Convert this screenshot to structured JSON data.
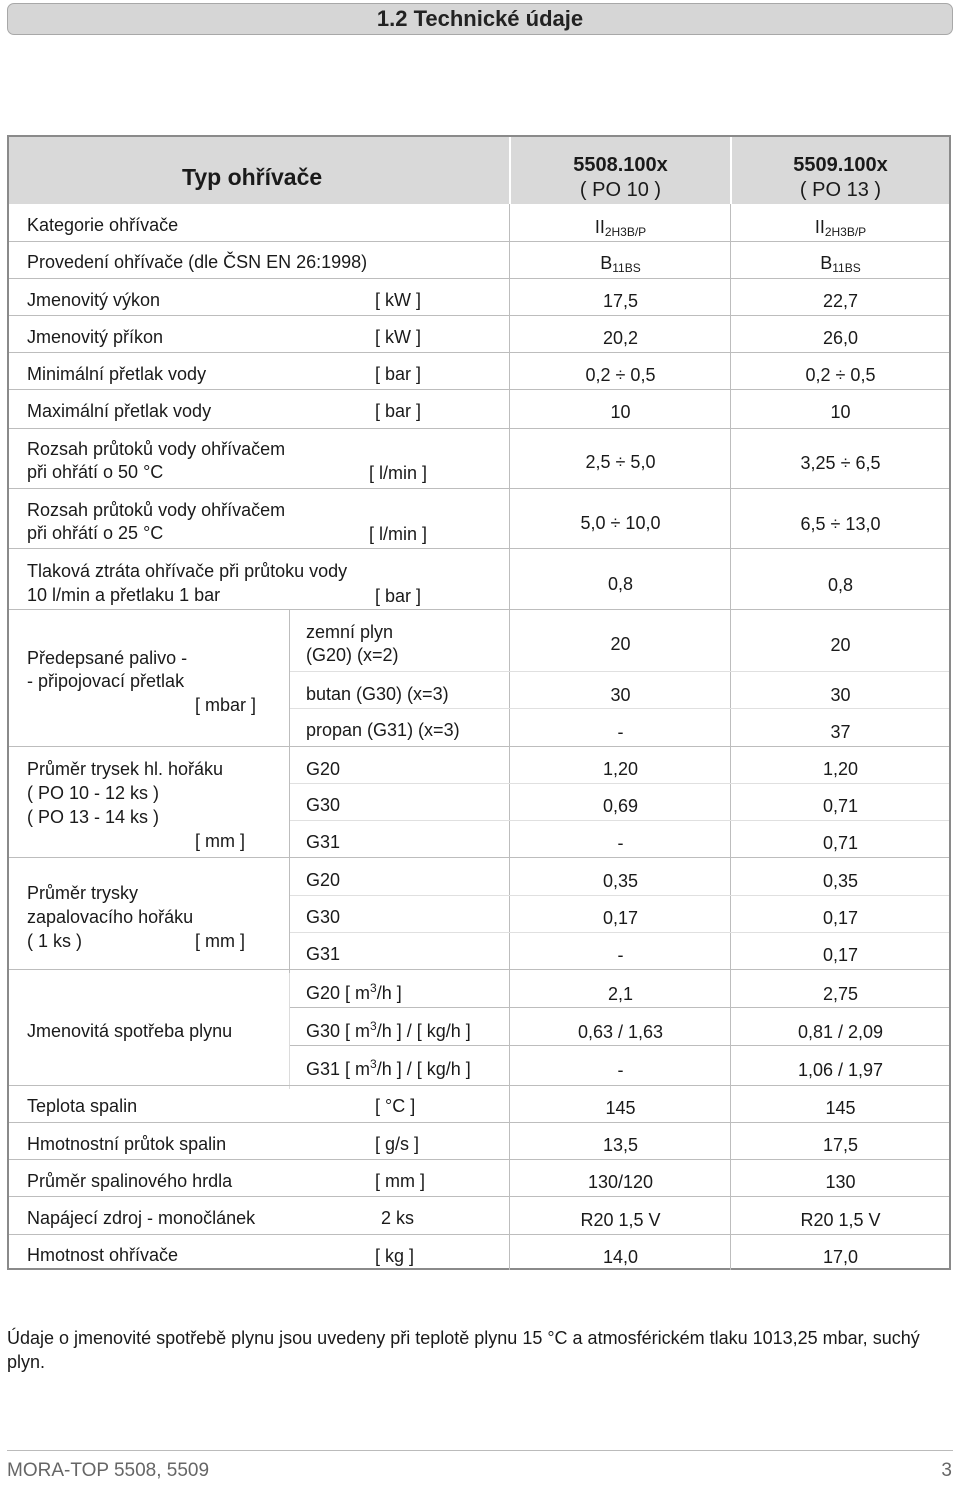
{
  "section_title": "1.2 Technické údaje",
  "header": {
    "type_label": "Typ ohřívače",
    "col1_model": "5508.100x",
    "col1_variant": "( PO 10 )",
    "col2_model": "5509.100x",
    "col2_variant": "( PO 13 )"
  },
  "rows": {
    "kategorie": {
      "label": "Kategorie ohřívače",
      "v1_main": "II",
      "v1_sub": "2H3B/P",
      "v2_main": "II",
      "v2_sub": "2H3B/P"
    },
    "provedeni": {
      "label": "Provedení ohřívače (dle ČSN EN 26:1998)",
      "v1_main": "B",
      "v1_sub": "11BS",
      "v2_main": "B",
      "v2_sub": "11BS"
    },
    "vykon": {
      "label": "Jmenovitý výkon",
      "unit": "[ kW ]",
      "v1": "17,5",
      "v2": "22,7"
    },
    "prikon": {
      "label": "Jmenovitý příkon",
      "unit": "[ kW ]",
      "v1": "20,2",
      "v2": "26,0"
    },
    "min_pretlak": {
      "label": "Minimální přetlak vody",
      "unit": "[ bar ]",
      "v1": "0,2 ÷ 0,5",
      "v2": "0,2 ÷ 0,5"
    },
    "max_pretlak": {
      "label": "Maximální přetlak vody",
      "unit": "[ bar ]",
      "v1": "10",
      "v2": "10"
    },
    "rozsah50": {
      "label1": "Rozsah průtoků vody ohřívačem",
      "label2": "při ohřátí o 50 °C",
      "unit": "[ l/min ]",
      "v1": "2,5 ÷ 5,0",
      "v2": "3,25 ÷ 6,5"
    },
    "rozsah25": {
      "label1": "Rozsah průtoků vody ohřívačem",
      "label2": "při ohřátí o 25 °C",
      "unit": "[ l/min ]",
      "v1": "5,0 ÷ 10,0",
      "v2": "6,5 ÷ 13,0"
    },
    "ztrata": {
      "label1": "Tlaková ztráta ohřívače při průtoku vody",
      "label2": "10 l/min a přetlaku 1 bar",
      "unit": "[ bar ]",
      "v1": "0,8",
      "v2": "0,8"
    },
    "palivo": {
      "label1": "Předepsané palivo -",
      "label2": "- připojovací přetlak",
      "unit": "[ mbar ]",
      "g20_1": "zemní plyn",
      "g20_2": "(G20) (x=2)",
      "g20_v1": "20",
      "g20_v2": "20",
      "g30": "butan (G30) (x=3)",
      "g30_v1": "30",
      "g30_v2": "30",
      "g31": "propan (G31) (x=3)",
      "g31_v1": "-",
      "g31_v2": "37"
    },
    "trysky_hl": {
      "label1": "Průměr trysek hl. hořáku",
      "label2": "( PO 10 - 12 ks )",
      "label3": "( PO 13 - 14 ks )",
      "unit": "[ mm ]",
      "g20": "G20",
      "g20_v1": "1,20",
      "g20_v2": "1,20",
      "g30": "G30",
      "g30_v1": "0,69",
      "g30_v2": "0,71",
      "g31": "G31",
      "g31_v1": "-",
      "g31_v2": "0,71"
    },
    "trysky_zap": {
      "label1": "Průměr trysky",
      "label2": "zapalovacího hořáku",
      "label3": "( 1 ks )",
      "unit": "[ mm ]",
      "g20": "G20",
      "g20_v1": "0,35",
      "g20_v2": "0,35",
      "g30": "G30",
      "g30_v1": "0,17",
      "g30_v2": "0,17",
      "g31": "G31",
      "g31_v1": "-",
      "g31_v2": "0,17"
    },
    "spotreba": {
      "label": "Jmenovitá spotřeba plynu",
      "g20_a": "G20 [ m",
      "g20_sup": "3",
      "g20_b": "/h ]",
      "g20_v1": "2,1",
      "g20_v2": "2,75",
      "g30_a": "G30 [ m",
      "g30_sup": "3",
      "g30_b": "/h ] / [ kg/h ]",
      "g30_v1": "0,63 / 1,63",
      "g30_v2": "0,81 / 2,09",
      "g31_a": "G31 [ m",
      "g31_sup": "3",
      "g31_b": "/h ] / [ kg/h ]",
      "g31_v1": "-",
      "g31_v2": "1,06 / 1,97"
    },
    "teplota": {
      "label": "Teplota spalin",
      "unit": "[ °C ]",
      "v1": "145",
      "v2": "145"
    },
    "prutok": {
      "label": "Hmotnostní průtok spalin",
      "unit": "[ g/s ]",
      "v1": "13,5",
      "v2": "17,5"
    },
    "hrdlo": {
      "label": "Průměr spalinového hrdla",
      "unit": "[ mm ]",
      "v1": "130/120",
      "v2": "130"
    },
    "zdroj": {
      "label": "Napájecí zdroj - monočlánek",
      "unit": "2 ks",
      "v1": "R20  1,5 V",
      "v2": "R20  1,5 V"
    },
    "hmotnost": {
      "label": "Hmotnost ohřívače",
      "unit": "[ kg ]",
      "v1": "14,0",
      "v2": "17,0"
    }
  },
  "note": "Údaje o jmenovité spotřebě plynu jsou uvedeny při teplotě plynu 15 °C a atmosférickém tlaku 1013,25 mbar, suchý plyn.",
  "footer": {
    "left": "MORA-TOP 5508, 5509",
    "right": "3"
  }
}
